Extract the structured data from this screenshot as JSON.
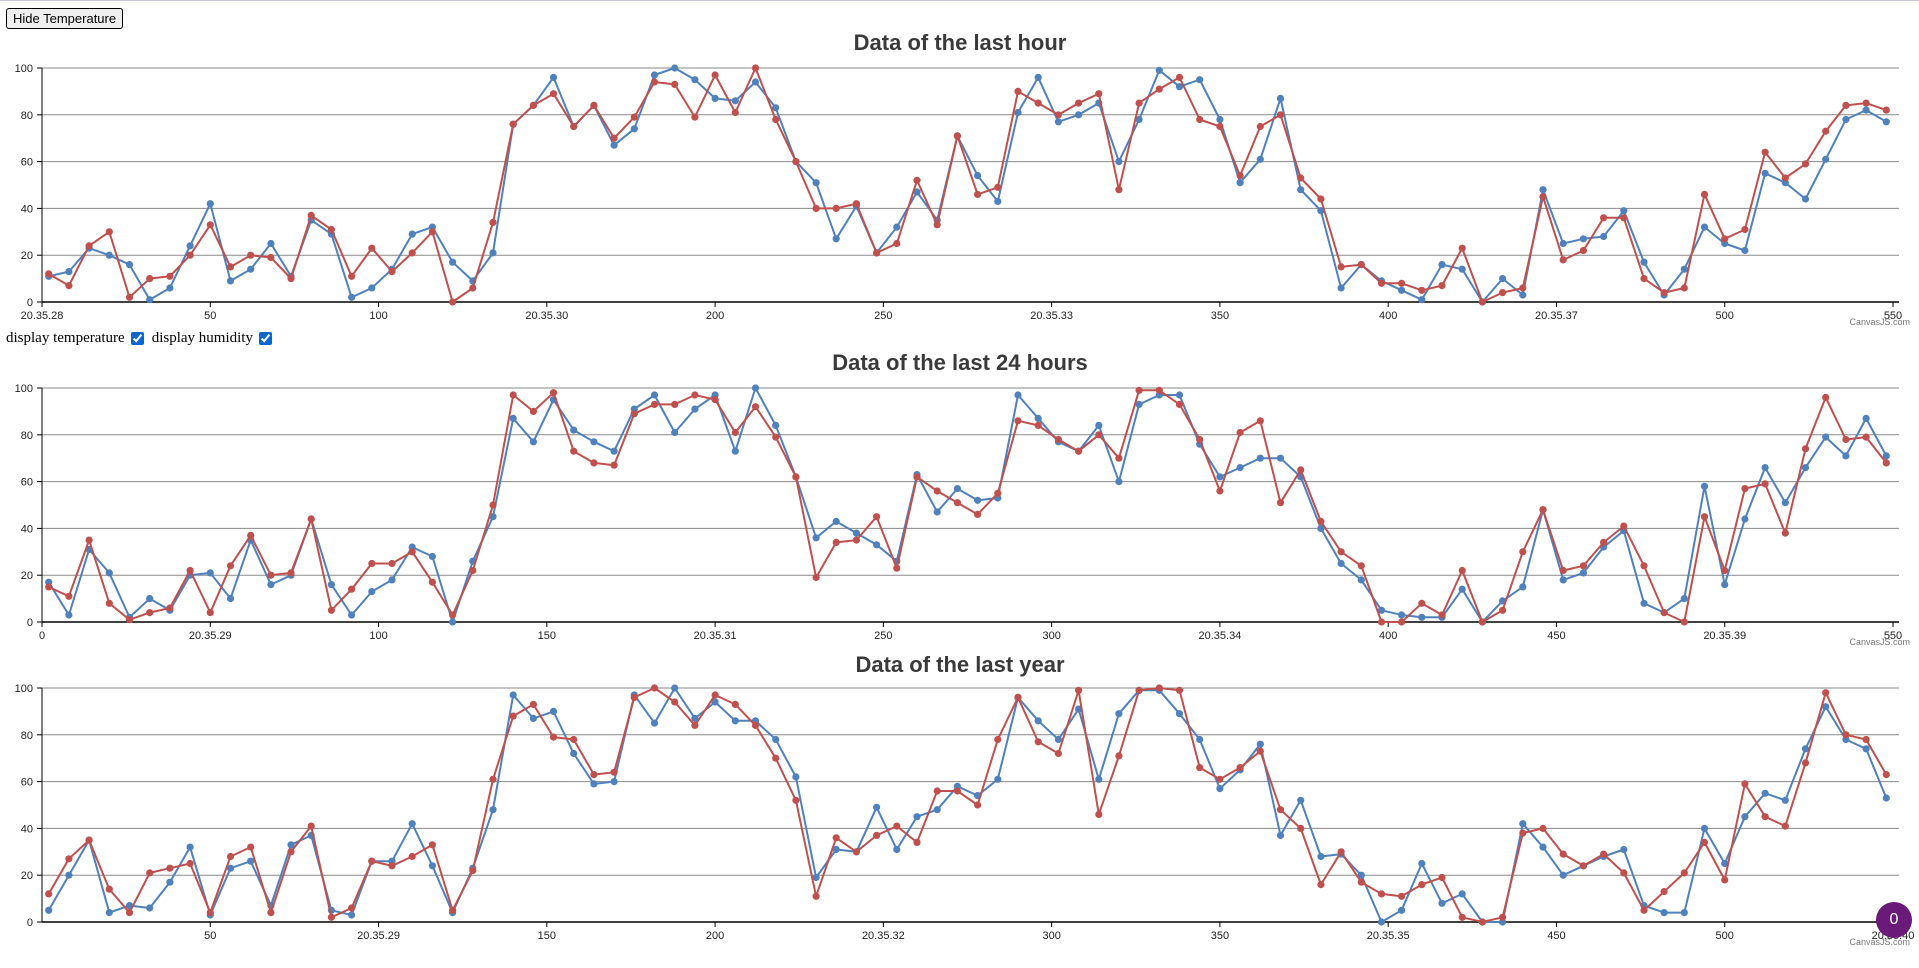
{
  "controls": {
    "hide_button_label": "Hide Temperature",
    "display_temperature_label": "display temperature",
    "display_humidity_label": "display humidity",
    "display_temperature_checked": true,
    "display_humidity_checked": true
  },
  "badge_count": "0",
  "colors": {
    "humidity": "#4F81BC",
    "temperature": "#C0504E",
    "grid": "#8a8a8a",
    "axis": "#000000"
  },
  "chart_data": [
    {
      "type": "line",
      "title": "Data of the last hour",
      "credit": "CanvasJS.com",
      "xlabel": "",
      "ylabel": "",
      "xlim": [
        0,
        550
      ],
      "ylim": [
        0,
        100
      ],
      "grid": true,
      "y_ticks": [
        0,
        20,
        40,
        60,
        80,
        100
      ],
      "x_ticks": [
        {
          "x": 0,
          "label": "20.35.28"
        },
        {
          "x": 50,
          "label": "50"
        },
        {
          "x": 100,
          "label": "100"
        },
        {
          "x": 150,
          "label": "20.35.30"
        },
        {
          "x": 200,
          "label": "200"
        },
        {
          "x": 250,
          "label": "250"
        },
        {
          "x": 300,
          "label": "20.35.33"
        },
        {
          "x": 350,
          "label": "350"
        },
        {
          "x": 400,
          "label": "400"
        },
        {
          "x": 450,
          "label": "20.35.37"
        },
        {
          "x": 500,
          "label": "500"
        },
        {
          "x": 550,
          "label": "550"
        }
      ],
      "x_start": 2,
      "x_step": 6,
      "series": [
        {
          "color": "#4F81BC",
          "values": [
            11,
            13,
            23,
            20,
            16,
            1,
            6,
            24,
            42,
            9,
            14,
            25,
            11,
            35,
            29,
            2,
            6,
            14,
            29,
            32,
            17,
            9,
            21,
            76,
            84,
            96,
            75,
            84,
            67,
            74,
            97,
            100,
            95,
            87,
            86,
            94,
            83,
            60,
            51,
            27,
            41,
            21,
            32,
            47,
            35,
            71,
            54,
            43,
            81,
            96,
            77,
            80,
            85,
            60,
            78,
            99,
            92,
            95,
            78,
            51,
            61,
            87,
            48,
            39,
            6,
            16,
            9,
            5,
            1,
            16,
            14,
            0,
            10,
            3,
            48,
            25,
            27,
            28,
            39,
            17,
            3,
            14,
            32,
            25,
            22,
            55,
            51,
            44,
            61,
            78,
            82,
            77
          ]
        },
        {
          "color": "#C0504E",
          "values": [
            12,
            7,
            24,
            30,
            2,
            10,
            11,
            20,
            33,
            15,
            20,
            19,
            10,
            37,
            31,
            11,
            23,
            13,
            21,
            30,
            0,
            6,
            34,
            76,
            84,
            89,
            75,
            84,
            70,
            79,
            94,
            93,
            79,
            97,
            81,
            100,
            78,
            60,
            40,
            40,
            42,
            21,
            25,
            52,
            33,
            71,
            46,
            49,
            90,
            85,
            80,
            85,
            89,
            48,
            85,
            91,
            96,
            78,
            75,
            54,
            75,
            80,
            53,
            44,
            15,
            16,
            8,
            8,
            5,
            7,
            23,
            0,
            4,
            6,
            45,
            18,
            22,
            36,
            36,
            10,
            4,
            6,
            46,
            27,
            31,
            64,
            53,
            59,
            73,
            84,
            85,
            82
          ]
        }
      ]
    },
    {
      "type": "line",
      "title": "Data of the last 24 hours",
      "credit": "CanvasJS.com",
      "xlabel": "",
      "ylabel": "",
      "xlim": [
        0,
        550
      ],
      "ylim": [
        0,
        100
      ],
      "grid": true,
      "y_ticks": [
        0,
        20,
        40,
        60,
        80,
        100
      ],
      "x_ticks": [
        {
          "x": 0,
          "label": "0"
        },
        {
          "x": 50,
          "label": "20.35.29"
        },
        {
          "x": 100,
          "label": "100"
        },
        {
          "x": 150,
          "label": "150"
        },
        {
          "x": 200,
          "label": "20.35.31"
        },
        {
          "x": 250,
          "label": "250"
        },
        {
          "x": 300,
          "label": "300"
        },
        {
          "x": 350,
          "label": "20.35.34"
        },
        {
          "x": 400,
          "label": "400"
        },
        {
          "x": 450,
          "label": "450"
        },
        {
          "x": 500,
          "label": "20.35.39"
        },
        {
          "x": 550,
          "label": "550"
        }
      ],
      "x_start": 2,
      "x_step": 6,
      "series": [
        {
          "color": "#4F81BC",
          "values": [
            17,
            3,
            31,
            21,
            2,
            10,
            5,
            20,
            21,
            10,
            35,
            16,
            20,
            44,
            16,
            3,
            13,
            18,
            32,
            28,
            0,
            26,
            45,
            87,
            77,
            95,
            82,
            77,
            73,
            91,
            97,
            81,
            91,
            97,
            73,
            100,
            84,
            62,
            36,
            43,
            38,
            33,
            26,
            63,
            47,
            57,
            52,
            53,
            97,
            87,
            77,
            73,
            84,
            60,
            93,
            97,
            97,
            76,
            62,
            66,
            70,
            70,
            62,
            40,
            25,
            18,
            5,
            3,
            2,
            2,
            14,
            0,
            9,
            15,
            48,
            18,
            21,
            32,
            39,
            8,
            4,
            10,
            58,
            16,
            44,
            66,
            51,
            66,
            79,
            71,
            87,
            71
          ]
        },
        {
          "color": "#C0504E",
          "values": [
            15,
            11,
            35,
            8,
            1,
            4,
            6,
            22,
            4,
            24,
            37,
            20,
            21,
            44,
            5,
            14,
            25,
            25,
            30,
            17,
            3,
            22,
            50,
            97,
            90,
            98,
            73,
            68,
            67,
            89,
            93,
            93,
            97,
            95,
            81,
            92,
            79,
            62,
            19,
            34,
            35,
            45,
            23,
            62,
            56,
            51,
            46,
            55,
            86,
            84,
            78,
            73,
            80,
            70,
            99,
            99,
            93,
            78,
            56,
            81,
            86,
            51,
            65,
            43,
            30,
            24,
            0,
            0,
            8,
            3,
            22,
            0,
            5,
            30,
            48,
            22,
            24,
            34,
            41,
            24,
            4,
            0,
            45,
            22,
            57,
            59,
            38,
            74,
            96,
            78,
            79,
            68
          ]
        }
      ]
    },
    {
      "type": "line",
      "title": "Data of the last year",
      "credit": "CanvasJS.com",
      "xlabel": "",
      "ylabel": "",
      "xlim": [
        0,
        550
      ],
      "ylim": [
        0,
        100
      ],
      "grid": true,
      "y_ticks": [
        0,
        20,
        40,
        60,
        80,
        100
      ],
      "x_ticks": [
        {
          "x": 50,
          "label": "50"
        },
        {
          "x": 100,
          "label": "20.35.29"
        },
        {
          "x": 150,
          "label": "150"
        },
        {
          "x": 200,
          "label": "200"
        },
        {
          "x": 250,
          "label": "20.35.32"
        },
        {
          "x": 300,
          "label": "300"
        },
        {
          "x": 350,
          "label": "350"
        },
        {
          "x": 400,
          "label": "20.35.35"
        },
        {
          "x": 450,
          "label": "450"
        },
        {
          "x": 500,
          "label": "500"
        },
        {
          "x": 550,
          "label": "20.35.40"
        }
      ],
      "x_start": 2,
      "x_step": 6,
      "series": [
        {
          "color": "#4F81BC",
          "values": [
            5,
            20,
            35,
            4,
            7,
            6,
            17,
            32,
            3,
            23,
            26,
            7,
            33,
            37,
            5,
            3,
            26,
            26,
            42,
            24,
            4,
            23,
            48,
            97,
            87,
            90,
            72,
            59,
            60,
            97,
            85,
            100,
            87,
            94,
            86,
            86,
            78,
            62,
            19,
            31,
            30,
            49,
            31,
            45,
            48,
            58,
            54,
            61,
            96,
            86,
            78,
            91,
            61,
            89,
            99,
            99,
            89,
            78,
            57,
            65,
            76,
            37,
            52,
            28,
            29,
            20,
            0,
            5,
            25,
            8,
            12,
            0,
            0,
            42,
            32,
            20,
            24,
            28,
            31,
            7,
            4,
            4,
            40,
            25,
            45,
            55,
            52,
            74,
            92,
            78,
            74,
            53
          ]
        },
        {
          "color": "#C0504E",
          "values": [
            12,
            27,
            35,
            14,
            4,
            21,
            23,
            25,
            4,
            28,
            32,
            4,
            30,
            41,
            2,
            6,
            26,
            24,
            28,
            33,
            5,
            22,
            61,
            88,
            93,
            79,
            78,
            63,
            64,
            96,
            100,
            94,
            84,
            97,
            93,
            84,
            70,
            52,
            11,
            36,
            30,
            37,
            41,
            34,
            56,
            56,
            50,
            78,
            96,
            77,
            72,
            99,
            46,
            71,
            99,
            100,
            99,
            66,
            61,
            66,
            73,
            48,
            40,
            16,
            30,
            17,
            12,
            11,
            16,
            19,
            2,
            0,
            2,
            38,
            40,
            29,
            24,
            29,
            21,
            5,
            13,
            21,
            34,
            18,
            59,
            45,
            41,
            68,
            98,
            80,
            78,
            63
          ]
        }
      ]
    }
  ]
}
